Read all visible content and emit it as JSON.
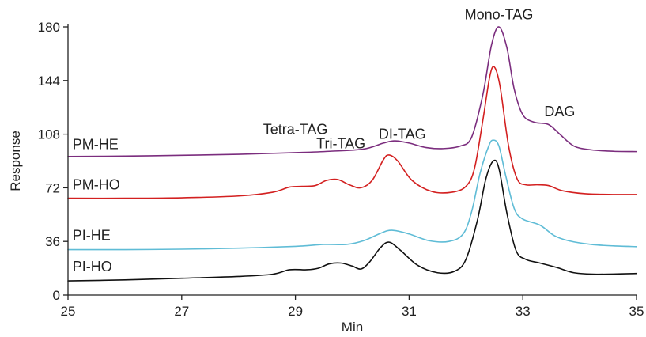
{
  "chart_data": {
    "type": "line",
    "title": "",
    "xlabel": "Min",
    "ylabel": "Response",
    "xlim": [
      25,
      35
    ],
    "ylim": [
      0,
      180
    ],
    "x_ticks": [
      "25",
      "27",
      "29",
      "31",
      "33",
      "35"
    ],
    "y_ticks": [
      "0",
      "36",
      "72",
      "108",
      "144",
      "180"
    ],
    "grid": false,
    "legend": "none",
    "series": [
      {
        "name": "PM-HE",
        "color": "#7b2d7e",
        "points": [
          [
            25,
            93
          ],
          [
            26,
            93.3
          ],
          [
            27,
            93.8
          ],
          [
            28,
            94.5
          ],
          [
            29,
            95.6
          ],
          [
            29.6,
            96.5
          ],
          [
            30.2,
            98
          ],
          [
            30.55,
            102
          ],
          [
            30.75,
            103.5
          ],
          [
            31,
            102
          ],
          [
            31.3,
            99
          ],
          [
            31.6,
            98.3
          ],
          [
            31.9,
            100
          ],
          [
            32.1,
            106
          ],
          [
            32.3,
            135
          ],
          [
            32.45,
            168
          ],
          [
            32.58,
            180
          ],
          [
            32.72,
            166
          ],
          [
            32.85,
            138
          ],
          [
            33,
            121
          ],
          [
            33.2,
            116
          ],
          [
            33.45,
            114.5
          ],
          [
            33.65,
            108
          ],
          [
            33.9,
            100
          ],
          [
            34.2,
            97.5
          ],
          [
            34.6,
            96.5
          ],
          [
            35,
            96.3
          ]
        ]
      },
      {
        "name": "PM-HO",
        "color": "#d32020",
        "points": [
          [
            25,
            65
          ],
          [
            26,
            65
          ],
          [
            27,
            65.3
          ],
          [
            28,
            66.5
          ],
          [
            28.6,
            69
          ],
          [
            28.9,
            72.5
          ],
          [
            29.15,
            73
          ],
          [
            29.35,
            73.5
          ],
          [
            29.55,
            77
          ],
          [
            29.75,
            77.5
          ],
          [
            29.95,
            74
          ],
          [
            30.15,
            72
          ],
          [
            30.35,
            77
          ],
          [
            30.55,
            91
          ],
          [
            30.65,
            94
          ],
          [
            30.8,
            90
          ],
          [
            31.05,
            77
          ],
          [
            31.4,
            69.5
          ],
          [
            31.75,
            69
          ],
          [
            32,
            73
          ],
          [
            32.15,
            85
          ],
          [
            32.3,
            118
          ],
          [
            32.42,
            147
          ],
          [
            32.5,
            153
          ],
          [
            32.6,
            140
          ],
          [
            32.75,
            100
          ],
          [
            32.9,
            78
          ],
          [
            33.05,
            74
          ],
          [
            33.25,
            74
          ],
          [
            33.45,
            73.5
          ],
          [
            33.7,
            70
          ],
          [
            34.1,
            68
          ],
          [
            34.6,
            67.5
          ],
          [
            35,
            67.5
          ]
        ]
      },
      {
        "name": "PI-HE",
        "color": "#5fbcd6",
        "points": [
          [
            25,
            30.5
          ],
          [
            26,
            30.5
          ],
          [
            27,
            30.8
          ],
          [
            28,
            31.5
          ],
          [
            29,
            32.7
          ],
          [
            29.5,
            34
          ],
          [
            29.9,
            34
          ],
          [
            30.2,
            36.5
          ],
          [
            30.5,
            41.5
          ],
          [
            30.7,
            43.5
          ],
          [
            31,
            41
          ],
          [
            31.35,
            36.5
          ],
          [
            31.7,
            36
          ],
          [
            31.95,
            41
          ],
          [
            32.1,
            56
          ],
          [
            32.25,
            82
          ],
          [
            32.4,
            100
          ],
          [
            32.48,
            104
          ],
          [
            32.58,
            100
          ],
          [
            32.7,
            80
          ],
          [
            32.85,
            58
          ],
          [
            33,
            51
          ],
          [
            33.3,
            47
          ],
          [
            33.55,
            40
          ],
          [
            33.8,
            36.5
          ],
          [
            34.2,
            34
          ],
          [
            34.6,
            33
          ],
          [
            35,
            32.5
          ]
        ]
      },
      {
        "name": "PI-HO",
        "color": "#111111",
        "points": [
          [
            25,
            9.5
          ],
          [
            26,
            10.2
          ],
          [
            27,
            11.3
          ],
          [
            28,
            12.5
          ],
          [
            28.6,
            14
          ],
          [
            28.9,
            17
          ],
          [
            29.2,
            17
          ],
          [
            29.4,
            18
          ],
          [
            29.6,
            21
          ],
          [
            29.8,
            21.5
          ],
          [
            30,
            19.5
          ],
          [
            30.15,
            17.5
          ],
          [
            30.3,
            22
          ],
          [
            30.5,
            32
          ],
          [
            30.65,
            35.5
          ],
          [
            30.85,
            30
          ],
          [
            31.15,
            20
          ],
          [
            31.5,
            15
          ],
          [
            31.8,
            16
          ],
          [
            32,
            24
          ],
          [
            32.2,
            50
          ],
          [
            32.35,
            78
          ],
          [
            32.48,
            90
          ],
          [
            32.58,
            85
          ],
          [
            32.72,
            55
          ],
          [
            32.88,
            30
          ],
          [
            33.05,
            24
          ],
          [
            33.3,
            21.5
          ],
          [
            33.6,
            18.5
          ],
          [
            33.9,
            15
          ],
          [
            34.3,
            14
          ],
          [
            35,
            14.5
          ]
        ]
      }
    ],
    "series_label_positions": [
      {
        "series": "PM-HE",
        "x": 25.08,
        "y": 98
      },
      {
        "series": "PM-HO",
        "x": 25.08,
        "y": 71
      },
      {
        "series": "PI-HE",
        "x": 25.08,
        "y": 37
      },
      {
        "series": "PI-HO",
        "x": 25.08,
        "y": 16
      }
    ],
    "annotations": [
      {
        "text": "Tetra-TAG",
        "x": 29.0,
        "y": 108
      },
      {
        "text": "Tri-TAG",
        "x": 29.8,
        "y": 98.5
      },
      {
        "text": "DI-TAG",
        "x": 30.88,
        "y": 105
      },
      {
        "text": "Mono-TAG",
        "x": 32.58,
        "y": 185
      },
      {
        "text": "DAG",
        "x": 33.65,
        "y": 120
      }
    ]
  }
}
